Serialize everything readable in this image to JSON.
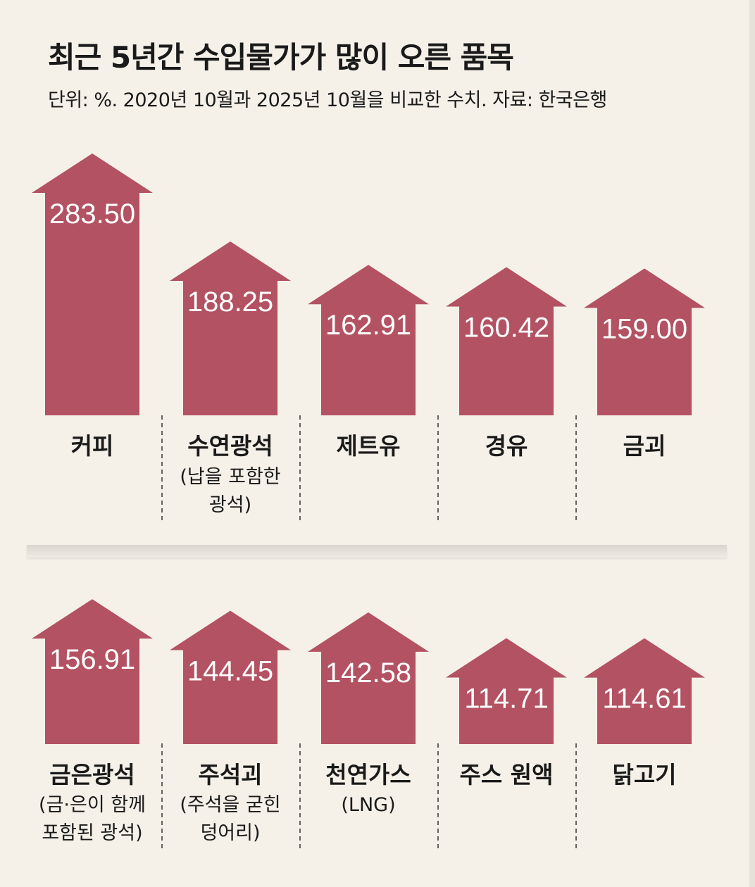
{
  "title": "최근 5년간 수입물가가 많이 오른 품목",
  "subtitle": "단위: %. 2020년 10월과 2025년 10월을 비교한 수치. 자료: 한국은행",
  "colors": {
    "bar": "#b35262",
    "background": "#f5f1e9"
  },
  "chart_data": {
    "type": "bar",
    "title": "최근 5년간 수입물가가 많이 오른 품목",
    "subtitle": "단위: %. 2020년 10월과 2025년 10월을 비교한 수치. 자료: 한국은행",
    "categories": [
      "커피",
      "수연광석",
      "제트유",
      "경유",
      "금괴",
      "금은광석",
      "주석괴",
      "천연가스",
      "주스 원액",
      "닭고기"
    ],
    "category_notes": [
      [],
      [
        "(납을 포함한",
        "광석)"
      ],
      [],
      [],
      [],
      [
        "(금·은이 함께",
        "포함된 광석)"
      ],
      [
        "(주석을 굳힌",
        "덩어리)"
      ],
      [
        "(LNG)"
      ],
      [],
      []
    ],
    "values": [
      283.5,
      188.25,
      162.91,
      160.42,
      159.0,
      156.91,
      144.45,
      142.58,
      114.71,
      114.61
    ],
    "value_labels": [
      "283.50",
      "188.25",
      "162.91",
      "160.42",
      "159.00",
      "156.91",
      "144.45",
      "142.58",
      "114.71",
      "114.61"
    ],
    "rows": [
      [
        0,
        1,
        2,
        3,
        4
      ],
      [
        5,
        6,
        7,
        8,
        9
      ]
    ],
    "unit": "%"
  }
}
